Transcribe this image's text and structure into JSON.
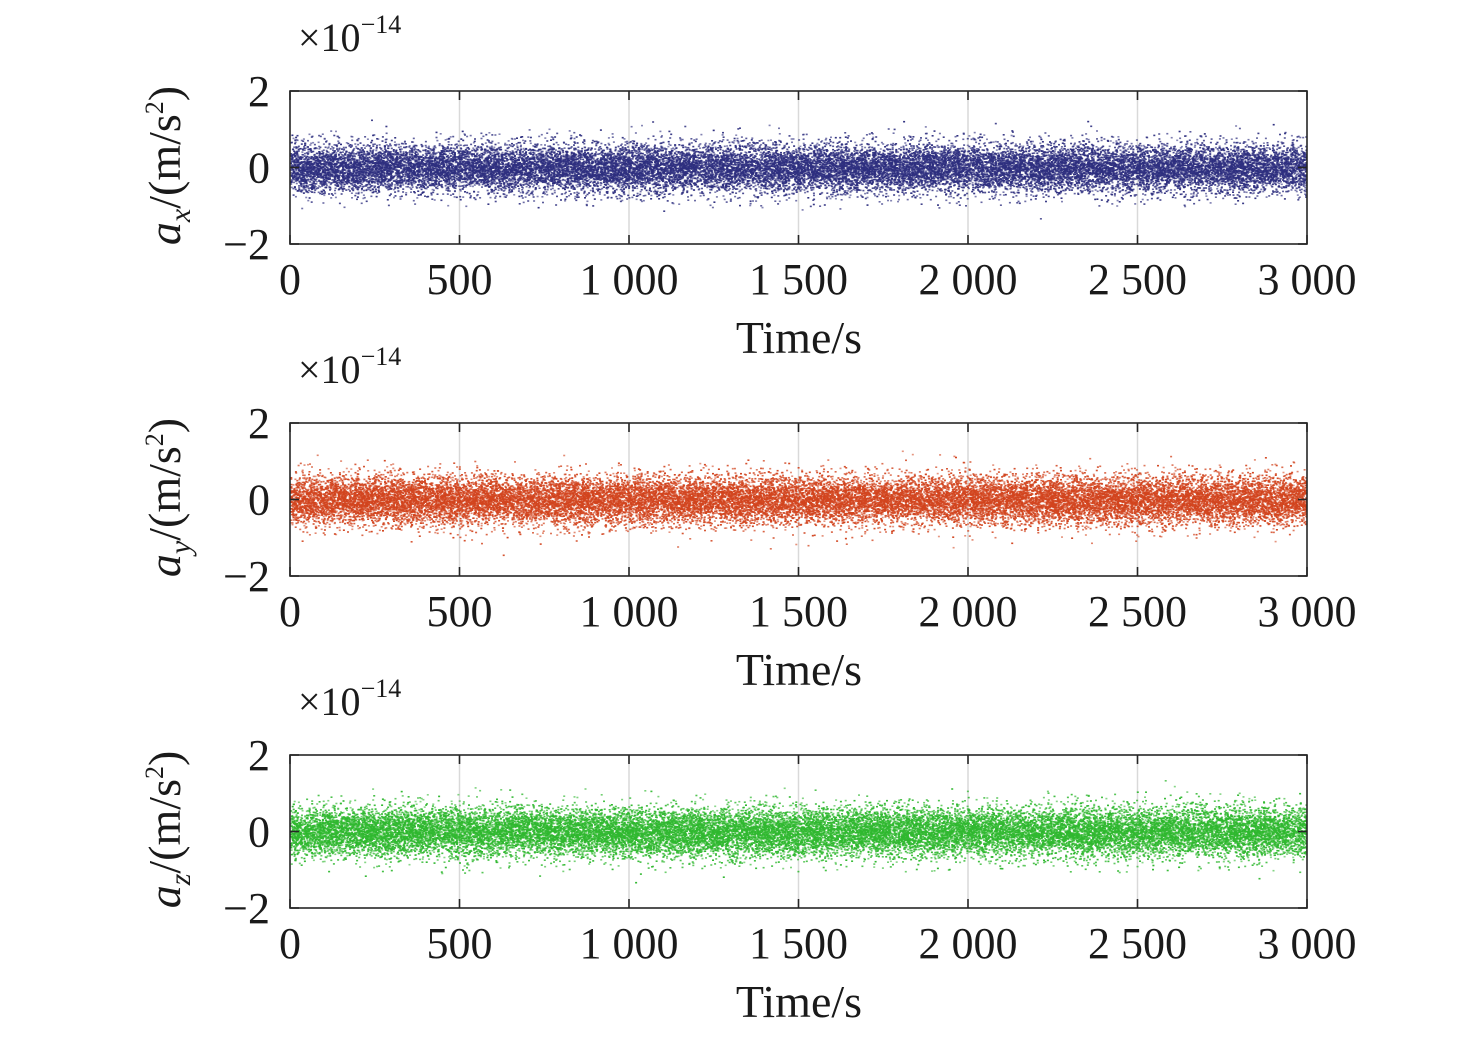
{
  "chart_data": [
    {
      "type": "scatter",
      "series": [
        {
          "color": "#2e2f7f",
          "std": 0.32,
          "n": 24000
        }
      ],
      "xlabel": "Time/s",
      "ylabel_symbol": "a",
      "ylabel_subscript": "x",
      "ylabel_unit": "/(m/s",
      "ylabel_power": "2",
      "ylabel_close": ")",
      "scale_prefix": "×10",
      "scale_exponent": "−14",
      "xlim": [
        0,
        3000
      ],
      "ylim": [
        -2,
        2
      ],
      "xticks": [
        0,
        500,
        1000,
        1500,
        2000,
        2500,
        3000
      ],
      "xtick_labels": [
        "0",
        "500",
        "1 000",
        "1 500",
        "2 000",
        "2 500",
        "3 000"
      ],
      "yticks": [
        -2,
        0,
        2
      ],
      "ytick_labels": [
        "−2",
        "0",
        "2"
      ],
      "grid": "vertical"
    },
    {
      "type": "scatter",
      "series": [
        {
          "color": "#d2441e",
          "std": 0.32,
          "n": 24000
        }
      ],
      "xlabel": "Time/s",
      "ylabel_symbol": "a",
      "ylabel_subscript": "y",
      "ylabel_unit": "/(m/s",
      "ylabel_power": "2",
      "ylabel_close": ")",
      "scale_prefix": "×10",
      "scale_exponent": "−14",
      "xlim": [
        0,
        3000
      ],
      "ylim": [
        -2,
        2
      ],
      "xticks": [
        0,
        500,
        1000,
        1500,
        2000,
        2500,
        3000
      ],
      "xtick_labels": [
        "0",
        "500",
        "1 000",
        "1 500",
        "2 000",
        "2 500",
        "3 000"
      ],
      "yticks": [
        -2,
        0,
        2
      ],
      "ytick_labels": [
        "−2",
        "0",
        "2"
      ],
      "grid": "vertical"
    },
    {
      "type": "scatter",
      "series": [
        {
          "color": "#2fb82f",
          "std": 0.32,
          "n": 24000
        }
      ],
      "xlabel": "Time/s",
      "ylabel_symbol": "a",
      "ylabel_subscript": "z",
      "ylabel_unit": "/(m/s",
      "ylabel_power": "2",
      "ylabel_close": ")",
      "scale_prefix": "×10",
      "scale_exponent": "−14",
      "xlim": [
        0,
        3000
      ],
      "ylim": [
        -2,
        2
      ],
      "xticks": [
        0,
        500,
        1000,
        1500,
        2000,
        2500,
        3000
      ],
      "xtick_labels": [
        "0",
        "500",
        "1 000",
        "1 500",
        "2 000",
        "2 500",
        "3 000"
      ],
      "yticks": [
        -2,
        0,
        2
      ],
      "ytick_labels": [
        "−2",
        "0",
        "2"
      ],
      "grid": "vertical"
    }
  ]
}
